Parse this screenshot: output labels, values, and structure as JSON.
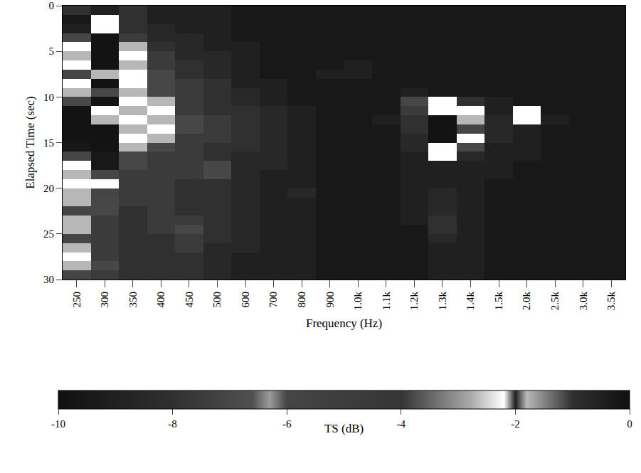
{
  "chart_data": {
    "type": "heatmap",
    "x_label": "Frequency (Hz)",
    "y_label": "Elapsed Time (sec)",
    "categories": [
      "250",
      "300",
      "350",
      "400",
      "450",
      "500",
      "600",
      "700",
      "800",
      "900",
      "1.0k",
      "1.1k",
      "1.2k",
      "1.3k",
      "1.4k",
      "1.5k",
      "2.0k",
      "2.5k",
      "3.0k",
      "3.5k"
    ],
    "y": [
      0.5,
      1.5,
      2.5,
      3.5,
      4.5,
      5.5,
      6.5,
      7.5,
      8.5,
      9.5,
      10.5,
      11.5,
      12.5,
      13.5,
      14.5,
      15.5,
      16.5,
      17.5,
      18.5,
      19.5,
      20.5,
      21.5,
      22.5,
      23.5,
      24.5,
      25.5,
      26.5,
      27.5,
      28.5,
      29.5
    ],
    "ylim": [
      0,
      30
    ],
    "yticks": [
      0,
      5,
      10,
      15,
      20,
      25,
      30
    ],
    "colorbar_title": "TS (dB)",
    "zlim": [
      -10,
      0
    ],
    "zticks": [
      -10,
      -8,
      -6,
      -4,
      -2,
      0
    ],
    "z": [
      [
        -8,
        -9,
        -8,
        -9,
        -9,
        -9,
        -9.5,
        -9.5,
        -9.5,
        -9.5,
        -9.5,
        -9.5,
        -9.5,
        -9.5,
        -9.5,
        -9.5,
        -9.5,
        -9.5,
        -9.5,
        -9.5
      ],
      [
        -9.5,
        -2.2,
        -8,
        -9,
        -9,
        -9,
        -9.5,
        -9.5,
        -9.5,
        -9.5,
        -9.5,
        -9.5,
        -9.5,
        -9.5,
        -9.5,
        -9.5,
        -9.5,
        -9.5,
        -9.5,
        -9.5
      ],
      [
        -9,
        -2.2,
        -8,
        -8.5,
        -9,
        -9,
        -9.5,
        -9.5,
        -9.5,
        -9.5,
        -9.5,
        -9.5,
        -9.5,
        -9.5,
        -9.5,
        -9.5,
        -9.5,
        -9.5,
        -9.5,
        -9.5
      ],
      [
        -7,
        -9.8,
        -7.5,
        -8.5,
        -8.5,
        -9,
        -9.5,
        -9.5,
        -9.5,
        -9.5,
        -9.5,
        -9.5,
        -9.5,
        -9.5,
        -9.5,
        -9.5,
        -9.5,
        -9.5,
        -9.5,
        -9.5
      ],
      [
        -2.2,
        -9.8,
        -2.7,
        -8,
        -8.5,
        -9,
        -9,
        -9.5,
        -9.5,
        -9.5,
        -9.5,
        -9.5,
        -9.5,
        -9.5,
        -9.5,
        -9.5,
        -9.5,
        -9.5,
        -9.5,
        -9.5
      ],
      [
        -2.7,
        -9.8,
        -2.2,
        -7.5,
        -8.5,
        -8.5,
        -9,
        -9.5,
        -9.5,
        -9.5,
        -9.5,
        -9.5,
        -9.5,
        -9.5,
        -9.5,
        -9.5,
        -9.5,
        -9.5,
        -9.5,
        -9.5
      ],
      [
        -2.2,
        -9.8,
        -2.7,
        -7.5,
        -8,
        -8.5,
        -9,
        -9.5,
        -9.5,
        -9.5,
        -9,
        -9.5,
        -9.5,
        -9.5,
        -9.5,
        -9.5,
        -9.5,
        -9.5,
        -9.5,
        -9.5
      ],
      [
        -6,
        -2.7,
        -2.2,
        -7,
        -8,
        -8.5,
        -9,
        -9.5,
        -9.5,
        -9,
        -9,
        -9.5,
        -9.5,
        -9.5,
        -9.5,
        -9.5,
        -9.5,
        -9.5,
        -9.5,
        -9.5
      ],
      [
        -2.2,
        -9.8,
        -2.2,
        -7,
        -7.5,
        -8,
        -9,
        -9,
        -9.5,
        -9.5,
        -9.5,
        -9.5,
        -9.5,
        -9.5,
        -9.5,
        -9.5,
        -9.5,
        -9.5,
        -9.5,
        -9.5
      ],
      [
        -2.7,
        -7,
        -2.7,
        -7,
        -7.5,
        -8,
        -8.5,
        -9,
        -9.5,
        -9.5,
        -9.5,
        -9.5,
        -9,
        -9.5,
        -9.5,
        -9.5,
        -9.5,
        -9.5,
        -9.5,
        -9.5
      ],
      [
        -7,
        -9.8,
        -2.2,
        -2.7,
        -7.5,
        -8,
        -8.5,
        -9,
        -9.5,
        -9.5,
        -9.5,
        -9.5,
        -7,
        -2.2,
        -8,
        -9,
        -9.5,
        -9.5,
        -9.5,
        -9.5
      ],
      [
        -9.8,
        -2.2,
        -2.7,
        -2.2,
        -7.5,
        -8,
        -8,
        -8.5,
        -9,
        -9.5,
        -9.5,
        -9.5,
        -7.5,
        -2.2,
        -2.2,
        -9,
        -2.2,
        -9.5,
        -9.5,
        -9.5
      ],
      [
        -9.8,
        -2.7,
        -2.2,
        -2.7,
        -7,
        -7.5,
        -8,
        -8.5,
        -9,
        -9.5,
        -9.5,
        -9,
        -8,
        -9.8,
        -2.7,
        -8.5,
        -2.2,
        -9,
        -9.5,
        -9.5
      ],
      [
        -9.8,
        -9.8,
        -2.7,
        -2.2,
        -7,
        -7.5,
        -8,
        -8.5,
        -9,
        -9.5,
        -9.5,
        -9.5,
        -8,
        -9.8,
        -6,
        -8.5,
        -9,
        -9.5,
        -9.5,
        -9.5
      ],
      [
        -9.8,
        -9.8,
        -2.2,
        -2.7,
        -7.5,
        -7.5,
        -8,
        -8.5,
        -9,
        -9.5,
        -9.5,
        -9.5,
        -8.5,
        -9.8,
        -2.2,
        -8.5,
        -9,
        -9.5,
        -9.5,
        -9.5
      ],
      [
        -9.5,
        -9.8,
        -2.7,
        -7,
        -7.5,
        -8,
        -8,
        -8.5,
        -9,
        -9.5,
        -9.5,
        -9.5,
        -8.5,
        -2.2,
        -7,
        -9,
        -9,
        -9.5,
        -9.5,
        -9.5
      ],
      [
        -6,
        -9.5,
        -7,
        -7.5,
        -7.5,
        -8,
        -8.5,
        -8.5,
        -9,
        -9.5,
        -9.5,
        -9.5,
        -9,
        -2.2,
        -8.5,
        -9,
        -9,
        -9.5,
        -9.5,
        -9.5
      ],
      [
        -2.2,
        -9.5,
        -7,
        -7.5,
        -7.5,
        -7,
        -8.5,
        -8.5,
        -9,
        -9.5,
        -9.5,
        -9.5,
        -9,
        -9,
        -9,
        -9,
        -9.5,
        -9.5,
        -9.5,
        -9.5
      ],
      [
        -2.7,
        -7,
        -7.5,
        -7.5,
        -7.5,
        -7,
        -8.5,
        -9,
        -9,
        -9.5,
        -9.5,
        -9.5,
        -9,
        -9,
        -9,
        -9,
        -9.5,
        -9.5,
        -9.5,
        -9.5
      ],
      [
        -2.2,
        -2.2,
        -7.5,
        -7.5,
        -8,
        -8,
        -8.5,
        -9,
        -9,
        -9.5,
        -9.5,
        -9.5,
        -9,
        -9,
        -9,
        -9.5,
        -9.5,
        -9.5,
        -9.5,
        -9.5
      ],
      [
        -2.7,
        -6,
        -7.5,
        -7.5,
        -8,
        -8,
        -8.5,
        -9,
        -8.5,
        -9.5,
        -9.5,
        -9.5,
        -9,
        -8.5,
        -9,
        -9.5,
        -9.5,
        -9.5,
        -9.5,
        -9.5
      ],
      [
        -2.7,
        -7,
        -7.5,
        -7.5,
        -8,
        -8,
        -8.5,
        -9,
        -9,
        -9.5,
        -9.5,
        -9.5,
        -9,
        -8.5,
        -9,
        -9.5,
        -9.5,
        -9.5,
        -9.5,
        -9.5
      ],
      [
        -6,
        -7,
        -8,
        -7.5,
        -8,
        -8,
        -8.5,
        -9,
        -9,
        -9.5,
        -9.5,
        -9.5,
        -9,
        -8.5,
        -9,
        -9.5,
        -9.5,
        -9.5,
        -9.5,
        -9.5
      ],
      [
        -2.7,
        -7.5,
        -8,
        -7.5,
        -7.5,
        -8,
        -8.5,
        -9,
        -9,
        -9.5,
        -9.5,
        -9.5,
        -9,
        -8,
        -9,
        -9.5,
        -9.5,
        -9.5,
        -9.5,
        -9.5
      ],
      [
        -2.7,
        -7.5,
        -8,
        -7.5,
        -7,
        -8,
        -8.5,
        -9,
        -9,
        -9.5,
        -9.5,
        -9.5,
        -9.5,
        -8,
        -9,
        -9.5,
        -9.5,
        -9.5,
        -9.5,
        -9.5
      ],
      [
        -6,
        -7.5,
        -8,
        -8,
        -7.5,
        -8,
        -8.5,
        -9,
        -9,
        -9.5,
        -9.5,
        -9.5,
        -9.5,
        -8.5,
        -9,
        -9.5,
        -9.5,
        -9.5,
        -9.5,
        -9.5
      ],
      [
        -2.7,
        -7.5,
        -8,
        -8,
        -7.5,
        -8.5,
        -8.5,
        -9,
        -9,
        -9.5,
        -9.5,
        -9.5,
        -9.5,
        -9,
        -9,
        -9.5,
        -9.5,
        -9.5,
        -9.5,
        -9.5
      ],
      [
        -2.2,
        -7.5,
        -8,
        -8,
        -8,
        -8.5,
        -9,
        -9,
        -9,
        -9.5,
        -9.5,
        -9.5,
        -9.5,
        -9,
        -9,
        -9.5,
        -9.5,
        -9.5,
        -9.5,
        -9.5
      ],
      [
        -2.7,
        -7,
        -8,
        -8,
        -8,
        -8.5,
        -9,
        -9,
        -9,
        -9.5,
        -9.5,
        -9.5,
        -9.5,
        -9,
        -9,
        -9.5,
        -9.5,
        -9.5,
        -9.5,
        -9.5
      ],
      [
        -6,
        -7.5,
        -8,
        -8,
        -8,
        -8.5,
        -9,
        -9,
        -9,
        -9.5,
        -9.5,
        -9.5,
        -9.5,
        -9,
        -9,
        -9.5,
        -9.5,
        -9.5,
        -9.5,
        -9.5
      ]
    ]
  }
}
